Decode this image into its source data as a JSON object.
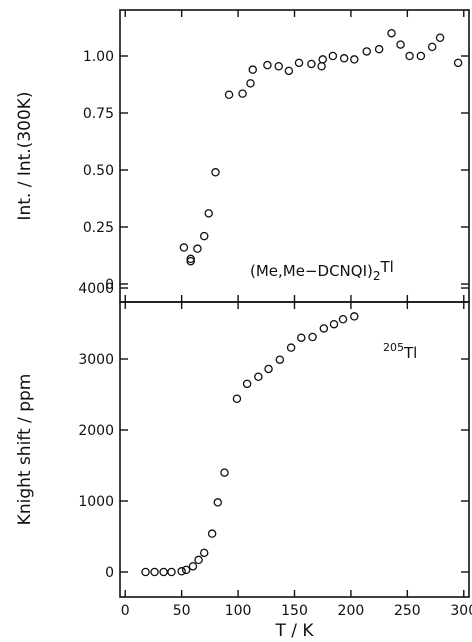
{
  "chart_data": [
    {
      "type": "scatter",
      "panel": "top",
      "ylabel": "Int. / Int.(300K)",
      "xlim": [
        0,
        300
      ],
      "ylim": [
        0,
        1.1
      ],
      "yticks": [
        "0",
        "0.25",
        "0.50",
        "0.75",
        "1.00"
      ],
      "annotation": {
        "main": "(Me,Me−DCNQI)",
        "sub": "2",
        "tail": "Tl"
      },
      "series": [
        {
          "marker": "open-circle",
          "points": [
            [
              52,
              0.16
            ],
            [
              58,
              0.1
            ],
            [
              58,
              0.11
            ],
            [
              64,
              0.155
            ],
            [
              70,
              0.21
            ],
            [
              74,
              0.31
            ],
            [
              80,
              0.49
            ],
            [
              92,
              0.83
            ],
            [
              104,
              0.835
            ],
            [
              111,
              0.88
            ],
            [
              113,
              0.94
            ],
            [
              126,
              0.96
            ],
            [
              136,
              0.955
            ],
            [
              145,
              0.935
            ],
            [
              154,
              0.97
            ],
            [
              165,
              0.965
            ],
            [
              174,
              0.955
            ],
            [
              175,
              0.985
            ],
            [
              184,
              1.0
            ],
            [
              194,
              0.99
            ],
            [
              203,
              0.985
            ],
            [
              214,
              1.02
            ],
            [
              225,
              1.03
            ],
            [
              236,
              1.1
            ],
            [
              244,
              1.05
            ],
            [
              252,
              1.0
            ],
            [
              262,
              1.0
            ],
            [
              272,
              1.04
            ],
            [
              279,
              1.08
            ],
            [
              295,
              0.97
            ]
          ]
        }
      ]
    },
    {
      "type": "scatter",
      "panel": "bottom",
      "xlabel": "T / K",
      "ylabel": "Knight shift / ppm",
      "xlim": [
        0,
        300
      ],
      "ylim": [
        -200,
        4000
      ],
      "xticks": [
        "0",
        "50",
        "100",
        "150",
        "200",
        "250",
        "300"
      ],
      "yticks": [
        "0",
        "1000",
        "2000",
        "3000",
        "4000"
      ],
      "annotation": {
        "sup": "205",
        "main": "Tl"
      },
      "series": [
        {
          "marker": "open-circle",
          "points": [
            [
              18,
              0
            ],
            [
              26,
              0
            ],
            [
              34,
              0
            ],
            [
              41,
              0
            ],
            [
              50,
              10
            ],
            [
              54,
              30
            ],
            [
              60,
              80
            ],
            [
              65,
              170
            ],
            [
              70,
              270
            ],
            [
              77,
              540
            ],
            [
              82,
              980
            ],
            [
              88,
              1400
            ],
            [
              99,
              2440
            ],
            [
              108,
              2650
            ],
            [
              118,
              2750
            ],
            [
              127,
              2860
            ],
            [
              137,
              2990
            ],
            [
              147,
              3160
            ],
            [
              156,
              3300
            ],
            [
              166,
              3310
            ],
            [
              176,
              3430
            ],
            [
              185,
              3490
            ],
            [
              193,
              3560
            ],
            [
              203,
              3600
            ]
          ]
        }
      ]
    }
  ]
}
